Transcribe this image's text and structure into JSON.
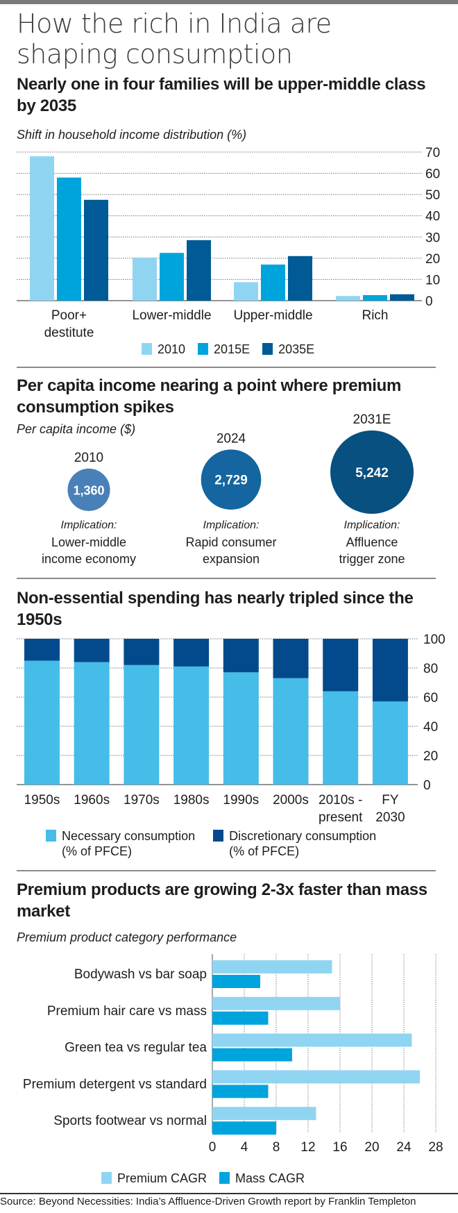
{
  "title": "How the rich in India are shaping consumption",
  "chart_data": [
    {
      "type": "bar",
      "title": "Nearly one in four families will be upper-middle class by 2035",
      "subtitle": "Shift in household income distribution (%)",
      "categories": [
        "Poor+ destitute",
        "Lower-middle",
        "Upper-middle",
        "Rich"
      ],
      "category_lines": [
        [
          "Poor+",
          "destitute"
        ],
        [
          "Lower-middle"
        ],
        [
          "Upper-middle"
        ],
        [
          "Rich"
        ]
      ],
      "series": [
        {
          "name": "2010",
          "color": "#8fd5f2",
          "values": [
            68,
            20.3,
            8.7,
            2.2
          ]
        },
        {
          "name": "2015E",
          "color": "#00a4dc",
          "values": [
            58,
            22.5,
            17,
            2.6
          ]
        },
        {
          "name": "2035E",
          "color": "#005a96",
          "values": [
            47.5,
            28.5,
            21,
            3
          ]
        }
      ],
      "ylim": [
        0,
        70
      ],
      "yticks": [
        0,
        10,
        20,
        30,
        40,
        50,
        60,
        70
      ],
      "grid": true,
      "yaxis_side": "right",
      "legend": "bottom"
    },
    {
      "type": "bubble",
      "title": "Per capita income nearing a point where premium consumption spikes",
      "subtitle": "Per capita income ($)",
      "points": [
        {
          "year": "2010",
          "value": 1360,
          "label": "1,360",
          "color": "#4a80b8",
          "implication_label": "Implication:",
          "implication": [
            "Lower-middle",
            "income economy"
          ]
        },
        {
          "year": "2024",
          "value": 2729,
          "label": "2,729",
          "color": "#1465a0",
          "implication_label": "Implication:",
          "implication": [
            "Rapid consumer",
            "expansion"
          ]
        },
        {
          "year": "2031E",
          "value": 5242,
          "label": "5,242",
          "color": "#07507f",
          "implication_label": "Implication:",
          "implication": [
            "Affluence",
            "trigger zone"
          ]
        }
      ]
    },
    {
      "type": "bar",
      "stacked": true,
      "title": "Non-essential spending has nearly tripled since the 1950s",
      "categories": [
        "1950s",
        "1960s",
        "1970s",
        "1980s",
        "1990s",
        "2000s",
        "2010s - present",
        "FY 2030"
      ],
      "category_lines": [
        [
          "1950s"
        ],
        [
          "1960s"
        ],
        [
          "1970s"
        ],
        [
          "1980s"
        ],
        [
          "1990s"
        ],
        [
          "2000s"
        ],
        [
          "2010s -",
          "present"
        ],
        [
          "FY",
          "2030"
        ]
      ],
      "series": [
        {
          "name": "Necessary consumption (% of PFCE)",
          "lines": [
            "Necessary consumption",
            "(% of PFCE)"
          ],
          "color": "#45bde8",
          "values": [
            85,
            84,
            82,
            81,
            77,
            73,
            64,
            57
          ]
        },
        {
          "name": "Discretionary consumption (% of PFCE)",
          "lines": [
            "Discretionary consumption",
            "(% of PFCE)"
          ],
          "color": "#034a8c",
          "values": [
            15,
            16,
            18,
            19,
            23,
            27,
            36,
            43
          ]
        }
      ],
      "ylim": [
        0,
        100
      ],
      "yticks": [
        0,
        20,
        40,
        60,
        80,
        100
      ],
      "grid": true,
      "yaxis_side": "right",
      "legend": "bottom"
    },
    {
      "type": "bar",
      "orientation": "horizontal",
      "title": "Premium products are growing 2-3x faster than mass market",
      "subtitle": "Premium product category performance",
      "categories": [
        "Bodywash vs bar soap",
        "Premium hair care vs mass",
        "Green tea vs regular tea",
        "Premium detergent vs standard",
        "Sports footwear vs normal"
      ],
      "series": [
        {
          "name": "Premium CAGR",
          "color": "#8fd5f2",
          "values": [
            15,
            16,
            25,
            26,
            13
          ]
        },
        {
          "name": "Mass CAGR",
          "color": "#00a4dc",
          "values": [
            6,
            7,
            10,
            7,
            8
          ]
        }
      ],
      "xlim": [
        0,
        28
      ],
      "xticks": [
        0,
        4,
        8,
        12,
        16,
        20,
        24,
        28
      ],
      "grid": true,
      "legend": "bottom"
    }
  ],
  "source": "Source: Beyond Necessities: India’s Affluence-Driven Growth report by Franklin Templeton"
}
